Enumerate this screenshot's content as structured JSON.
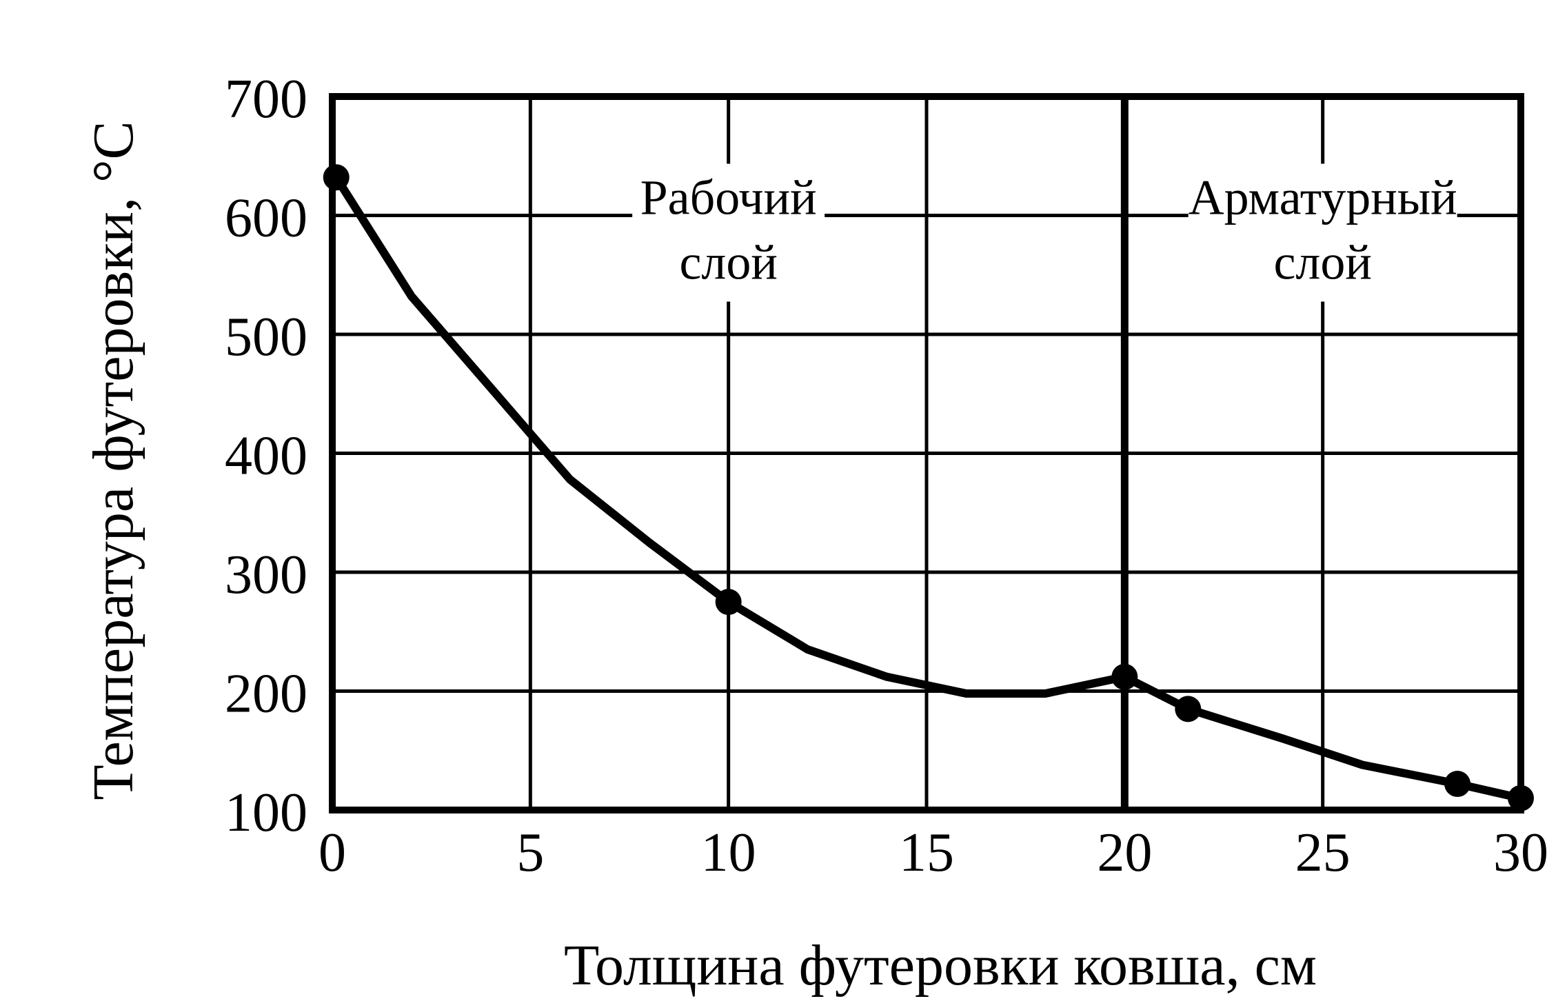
{
  "chart_data": {
    "type": "line",
    "title": "",
    "xlabel": "Толщина футеровки ковша, см",
    "ylabel": "Температура футеровки, °С",
    "xlim": [
      0,
      30
    ],
    "ylim": [
      100,
      700
    ],
    "x_ticks": [
      0,
      5,
      10,
      15,
      20,
      25,
      30
    ],
    "y_ticks": [
      100,
      200,
      300,
      400,
      500,
      600,
      700
    ],
    "x_tick_labels": [
      "0",
      "5",
      "10",
      "15",
      "20",
      "25",
      "30"
    ],
    "y_tick_labels": [
      "100",
      "200",
      "300",
      "400",
      "500",
      "600",
      "700"
    ],
    "grid": true,
    "layer_boundary_x": 20,
    "regions": [
      {
        "line1": "Рабочий",
        "line2": "слой",
        "x_center": 10
      },
      {
        "line1": "Арматурный",
        "line2": "слой",
        "x_center": 25
      }
    ],
    "series": [
      {
        "x": [
          0.1,
          2,
          4,
          6,
          8,
          10,
          12,
          14,
          16,
          18,
          20,
          21.6,
          24,
          26,
          28.4,
          30
        ],
        "y": [
          632,
          532,
          455,
          378,
          325,
          275,
          235,
          212,
          198,
          198,
          212,
          185,
          160,
          138,
          122,
          110
        ],
        "markers_x": [
          0.1,
          10,
          20,
          21.6,
          28.4,
          30
        ],
        "markers_y": [
          632,
          275,
          212,
          185,
          122,
          110
        ],
        "color": "#000000"
      }
    ]
  }
}
